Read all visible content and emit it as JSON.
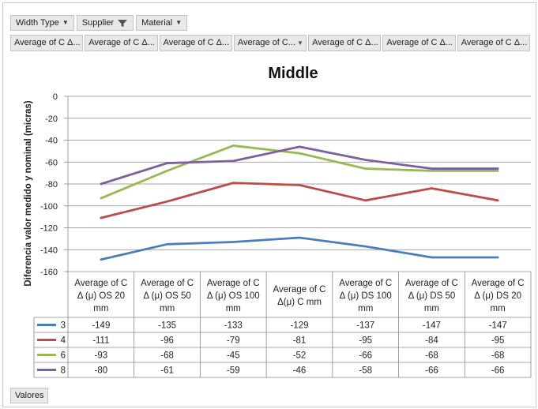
{
  "filters": [
    {
      "label": "Width Type",
      "icon": "dropdown-arrow-icon"
    },
    {
      "label": "Supplier",
      "icon": "filter-icon"
    },
    {
      "label": "Material",
      "icon": "dropdown-arrow-icon"
    }
  ],
  "value_fields": [
    "Average of C Δ...",
    "Average of C Δ...",
    "Average of C Δ...",
    "Average of C...",
    "Average of C Δ...",
    "Average of C Δ...",
    "Average of C Δ..."
  ],
  "values_button": "Valores",
  "chart_data": {
    "type": "line",
    "title": "Middle",
    "ylabel": "Diferencia valor medido y nominal (micras)",
    "xlabel": "",
    "ylim": [
      -160,
      0
    ],
    "yticks": [
      0,
      -20,
      -40,
      -60,
      -80,
      -100,
      -120,
      -140,
      -160
    ],
    "grid": true,
    "categories": [
      "Average of C Δ (μ) OS 20 mm",
      "Average of C Δ (μ) OS 50 mm",
      "Average of C Δ (μ) OS 100 mm",
      "Average of C Δ(μ) C mm",
      "Average of C Δ (μ) DS 100 mm",
      "Average of C Δ (μ) DS 50 mm",
      "Average of C Δ (μ) DS 20 mm"
    ],
    "category_lines": [
      [
        "Average of C",
        "Δ (μ) OS 20",
        "mm"
      ],
      [
        "Average of C",
        "Δ (μ) OS 50",
        "mm"
      ],
      [
        "Average of C",
        "Δ (μ) OS 100",
        "mm"
      ],
      [
        "Average of C",
        "Δ(μ) C mm"
      ],
      [
        "Average of C",
        "Δ (μ) DS 100",
        "mm"
      ],
      [
        "Average of C",
        "Δ (μ) DS 50",
        "mm"
      ],
      [
        "Average of C",
        "Δ (μ) DS 20",
        "mm"
      ]
    ],
    "series": [
      {
        "name": "3",
        "color": "#4a7ebb",
        "values": [
          -149,
          -135,
          -133,
          -129,
          -137,
          -147,
          -147
        ]
      },
      {
        "name": "4",
        "color": "#be4b48",
        "values": [
          -111,
          -96,
          -79,
          -81,
          -95,
          -84,
          -95
        ]
      },
      {
        "name": "6",
        "color": "#98b954",
        "values": [
          -93,
          -68,
          -45,
          -52,
          -66,
          -68,
          -68
        ]
      },
      {
        "name": "8",
        "color": "#7d60a0",
        "values": [
          -80,
          -61,
          -59,
          -46,
          -58,
          -66,
          -66
        ]
      }
    ]
  }
}
